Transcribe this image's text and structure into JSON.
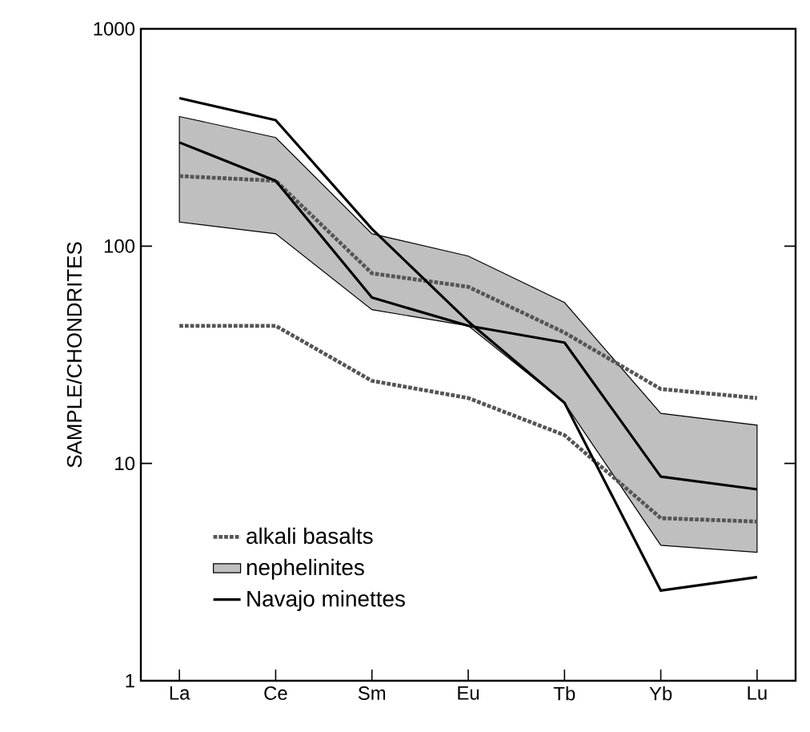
{
  "chart_data": {
    "type": "line",
    "ylabel": "SAMPLE/CHONDRITES",
    "log": "y",
    "legend": "bottom left",
    "grid": false,
    "categories": [
      "La",
      "Ce",
      "Sm",
      "Eu",
      "Tb",
      "Yb",
      "Lu"
    ],
    "ylim": [
      1,
      1000
    ],
    "yticks": [
      1,
      10,
      100,
      1000
    ],
    "series": [
      {
        "name": "alkali basalts",
        "color": "#555555",
        "line_style": "dotted",
        "values": [
          210,
          200,
          75,
          65,
          40,
          22,
          20
        ]
      },
      {
        "color": "#555555",
        "line_style": "dotted",
        "values": [
          43,
          43,
          24,
          20,
          13.5,
          5.6,
          5.4
        ]
      },
      {
        "name": "nephelinites",
        "type": "area",
        "color": "#000000",
        "values": [
          null,
          null,
          null,
          null,
          null,
          null,
          null
        ],
        "lower": [
          129,
          114,
          51,
          43,
          19,
          4.2,
          3.9
        ],
        "upper": [
          395,
          316,
          114,
          90,
          55,
          17,
          15
        ]
      },
      {
        "name": "Navajo minettes",
        "color": "#000000",
        "line_style": "solid",
        "values": [
          480,
          380,
          120,
          45,
          19,
          2.6,
          3.0
        ]
      },
      {
        "color": "#000000",
        "line_style": "solid",
        "values": [
          300,
          200,
          58,
          43,
          36,
          8.7,
          7.6
        ]
      }
    ]
  }
}
